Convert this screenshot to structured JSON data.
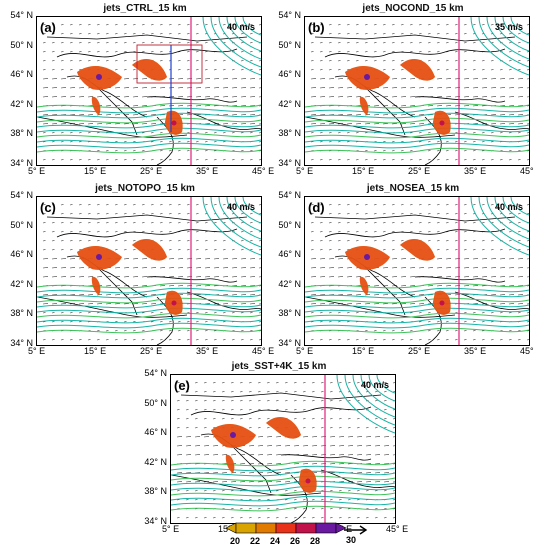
{
  "panels": [
    {
      "key": "a",
      "title": "jets_CTRL_15 km",
      "tag": "(a)",
      "ref": "40 m/s"
    },
    {
      "key": "b",
      "title": "jets_NOCOND_15 km",
      "tag": "(b)",
      "ref": "35 m/s"
    },
    {
      "key": "c",
      "title": "jets_NOTOPO_15 km",
      "tag": "(c)",
      "ref": "40 m/s"
    },
    {
      "key": "d",
      "title": "jets_NOSEA_15 km",
      "tag": "(d)",
      "ref": "40 m/s"
    },
    {
      "key": "e",
      "title": "jets_SST+4K_15 km",
      "tag": "(e)",
      "ref": "40 m/s"
    }
  ],
  "lat_labels": [
    "54° N",
    "50° N",
    "46° N",
    "42° N",
    "38° N",
    "34° N"
  ],
  "lon_labels": [
    "5° E",
    "15° E",
    "25° E",
    "35° E",
    "45° E"
  ],
  "colorbar": {
    "ticks": [
      "20",
      "22",
      "24",
      "26",
      "28"
    ],
    "colors": [
      "#d9a400",
      "#e07b00",
      "#e8321a",
      "#c2124a",
      "#6a1aa0"
    ],
    "vector_ref": "30"
  },
  "colors": {
    "contour": "#18b5a6",
    "contour_light": "#3cc35a",
    "frame": "#000000",
    "line_pink": "#e0207a",
    "line_blue": "#2040d0"
  }
}
